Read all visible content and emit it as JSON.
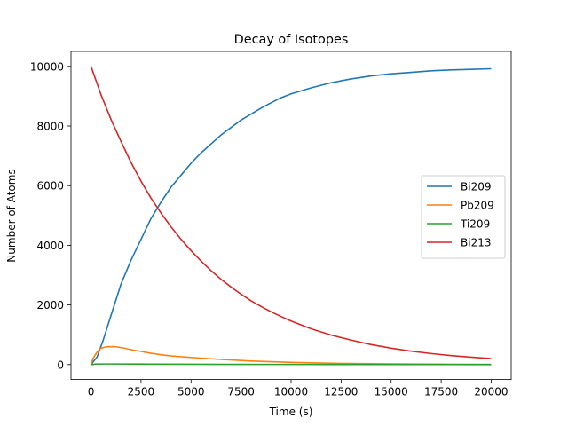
{
  "chart_data": {
    "type": "line",
    "title": "Decay of Isotopes",
    "xlabel": "Time (s)",
    "ylabel": "Number of Atoms",
    "xlim": [
      -1000,
      21000
    ],
    "ylim": [
      -500,
      10500
    ],
    "xticks": [
      0,
      2500,
      5000,
      7500,
      10000,
      12500,
      15000,
      17500,
      20000
    ],
    "xtick_labels": [
      "0",
      "2500",
      "5000",
      "7500",
      "10000",
      "12500",
      "15000",
      "17500",
      "20000"
    ],
    "yticks": [
      0,
      2000,
      4000,
      6000,
      8000,
      10000
    ],
    "ytick_labels": [
      "0",
      "2000",
      "4000",
      "6000",
      "8000",
      "10000"
    ],
    "grid": false,
    "legend_position": "center-right",
    "series": [
      {
        "name": "Bi209",
        "color": "#1f77b4",
        "x": [
          0,
          300,
          600,
          1000,
          1500,
          2000,
          2500,
          3000,
          3500,
          4000,
          4500,
          5000,
          5500,
          6000,
          6500,
          7000,
          7500,
          8000,
          8500,
          9000,
          9500,
          10000,
          11000,
          12000,
          13000,
          14000,
          15000,
          16000,
          17000,
          18000,
          19000,
          20000
        ],
        "y": [
          0,
          250,
          800,
          1650,
          2700,
          3500,
          4200,
          4900,
          5450,
          5950,
          6350,
          6750,
          7100,
          7400,
          7700,
          7950,
          8200,
          8400,
          8600,
          8780,
          8950,
          9080,
          9280,
          9450,
          9580,
          9680,
          9750,
          9800,
          9850,
          9880,
          9900,
          9920
        ]
      },
      {
        "name": "Pb209",
        "color": "#ff7f0e",
        "x": [
          0,
          100,
          300,
          500,
          800,
          1200,
          1600,
          2000,
          2500,
          3000,
          3500,
          4000,
          5000,
          6000,
          7000,
          8000,
          9000,
          10000,
          11000,
          12000,
          13000,
          14000,
          15000,
          16000,
          17000,
          18000,
          19000,
          20000
        ],
        "y": [
          0,
          200,
          420,
          550,
          600,
          600,
          560,
          500,
          440,
          380,
          330,
          290,
          240,
          195,
          155,
          120,
          95,
          75,
          58,
          45,
          36,
          28,
          22,
          17,
          13,
          10,
          8,
          6
        ]
      },
      {
        "name": "Ti209",
        "color": "#2ca02c",
        "x": [
          0,
          200,
          500,
          1000,
          2000,
          3000,
          5000,
          7000,
          10000,
          13000,
          16000,
          20000
        ],
        "y": [
          0,
          15,
          20,
          20,
          18,
          15,
          11,
          8,
          5,
          3,
          2,
          1
        ]
      },
      {
        "name": "Bi213",
        "color": "#d62728",
        "x": [
          0,
          500,
          1000,
          1500,
          2000,
          2500,
          3000,
          3500,
          4000,
          4500,
          5000,
          5500,
          6000,
          6500,
          7000,
          7500,
          8000,
          8500,
          9000,
          9500,
          10000,
          11000,
          12000,
          13000,
          14000,
          15000,
          16000,
          17000,
          18000,
          19000,
          20000
        ],
        "y": [
          10000,
          9050,
          8220,
          7480,
          6780,
          6150,
          5580,
          5080,
          4620,
          4200,
          3820,
          3470,
          3150,
          2860,
          2600,
          2360,
          2140,
          1950,
          1770,
          1610,
          1460,
          1200,
          990,
          820,
          670,
          550,
          450,
          370,
          300,
          250,
          200
        ]
      }
    ]
  }
}
